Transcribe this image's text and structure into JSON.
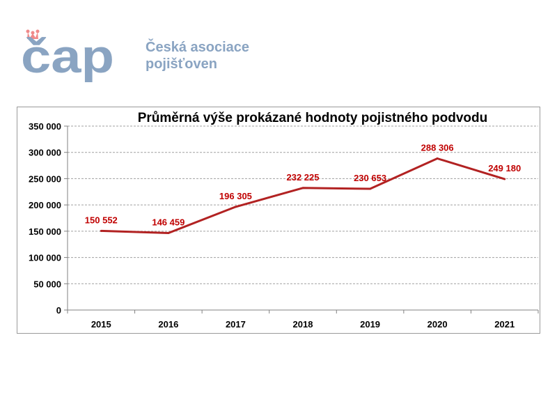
{
  "logo": {
    "mark_text": "čap",
    "org_line1": "Česká asociace",
    "org_line2": "pojišťoven",
    "brand_color": "#8aa4c2",
    "crown_color": "#f08a8a"
  },
  "chart_data": {
    "type": "line",
    "title": "Průměrná výše prokázané hodnoty pojistného podvodu",
    "categories": [
      "2015",
      "2016",
      "2017",
      "2018",
      "2019",
      "2020",
      "2021"
    ],
    "values": [
      150552,
      146459,
      196305,
      232225,
      230653,
      288306,
      249180
    ],
    "data_labels": [
      "150 552",
      "146 459",
      "196 305",
      "232 225",
      "230 653",
      "288 306",
      "249 180"
    ],
    "ylim": [
      0,
      350000
    ],
    "y_ticks": [
      0,
      50000,
      100000,
      150000,
      200000,
      250000,
      300000,
      350000
    ],
    "y_tick_labels": [
      "0",
      "50 000",
      "100 000",
      "150 000",
      "200 000",
      "250 000",
      "300 000",
      "350 000"
    ],
    "xlabel": "",
    "ylabel": "",
    "grid": true,
    "legend": "none",
    "line_color": "#b22222",
    "label_color": "#c00000",
    "grid_color": "#a0a0a0"
  }
}
